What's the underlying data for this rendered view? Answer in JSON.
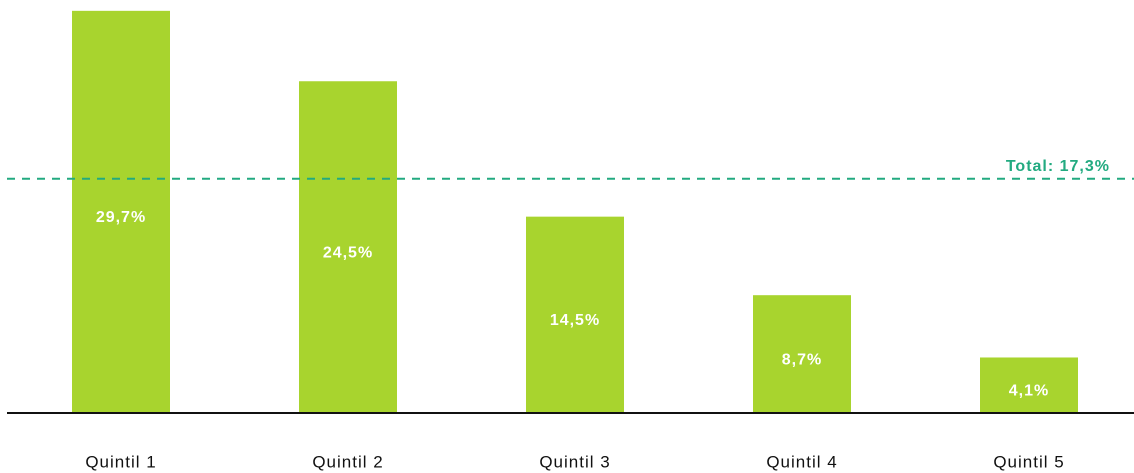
{
  "chart_data": {
    "type": "bar",
    "categories": [
      "Quintil 1",
      "Quintil 2",
      "Quintil 3",
      "Quintil 4",
      "Quintil 5"
    ],
    "values": [
      29.7,
      24.5,
      14.5,
      8.7,
      4.1
    ],
    "value_labels": [
      "29,7%",
      "24,5%",
      "14,5%",
      "8,7%",
      "4,1%"
    ],
    "color": "#a8d42e",
    "ylim": [
      0,
      30.5
    ],
    "reference_line": {
      "value": 17.3,
      "label": "Total: 17,3%",
      "color": "#22aa80"
    }
  }
}
